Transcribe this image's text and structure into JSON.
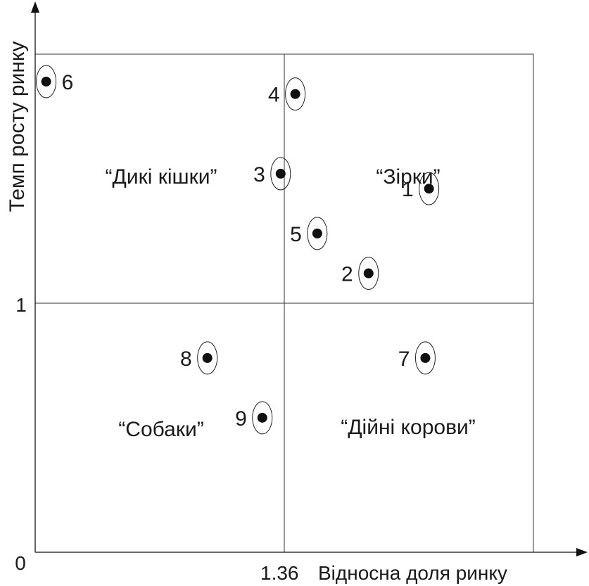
{
  "chart_data": {
    "type": "scatter",
    "title": "",
    "xlabel": "Відносна доля ринку",
    "ylabel": "Темп росту ринку",
    "x_tick_labels": {
      "origin": "0",
      "mid": "1.36"
    },
    "y_tick_labels": {
      "mid": "1"
    },
    "xlim": [
      0,
      2.72
    ],
    "ylim": [
      0,
      2
    ],
    "x_split": 1.36,
    "y_split": 1,
    "grid": false,
    "quadrants": [
      {
        "name": "“Дикі кішки”",
        "region": "top-left"
      },
      {
        "name": "“Зірки”",
        "region": "top-right"
      },
      {
        "name": "“Собаки”",
        "region": "bottom-left"
      },
      {
        "name": "“Дійні корови”",
        "region": "bottom-right"
      }
    ],
    "points": [
      {
        "label": "1",
        "x": 2.15,
        "y": 1.46
      },
      {
        "label": "2",
        "x": 1.82,
        "y": 1.12
      },
      {
        "label": "3",
        "x": 1.34,
        "y": 1.52
      },
      {
        "label": "4",
        "x": 1.42,
        "y": 1.84
      },
      {
        "label": "5",
        "x": 1.54,
        "y": 1.28
      },
      {
        "label": "6",
        "x": 0.06,
        "y": 1.89
      },
      {
        "label": "7",
        "x": 2.13,
        "y": 0.78
      },
      {
        "label": "8",
        "x": 0.94,
        "y": 0.78
      },
      {
        "label": "9",
        "x": 1.24,
        "y": 0.54
      }
    ]
  }
}
